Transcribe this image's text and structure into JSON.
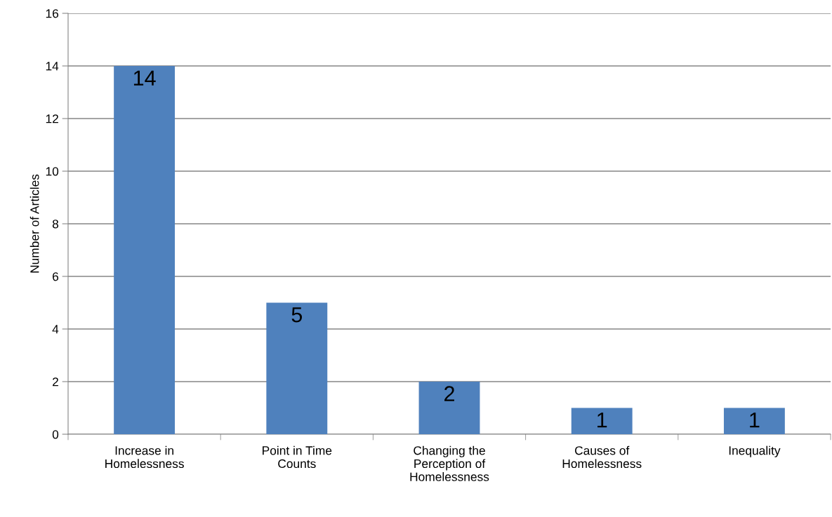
{
  "chart_data": {
    "type": "bar",
    "ylabel": "Number of Articles",
    "categories": [
      "Increase in\nHomelessness",
      "Point in Time\nCounts",
      "Changing the\nPerception of\nHomelessness",
      "Causes of\nHomelessness",
      "Inequality"
    ],
    "values": [
      14,
      5,
      2,
      1,
      1
    ],
    "color": "#4f81bd",
    "ylim": [
      0,
      16
    ],
    "yticks": [
      0,
      2,
      4,
      6,
      8,
      10,
      12,
      14,
      16
    ],
    "grid": "y",
    "data_labels": true
  }
}
